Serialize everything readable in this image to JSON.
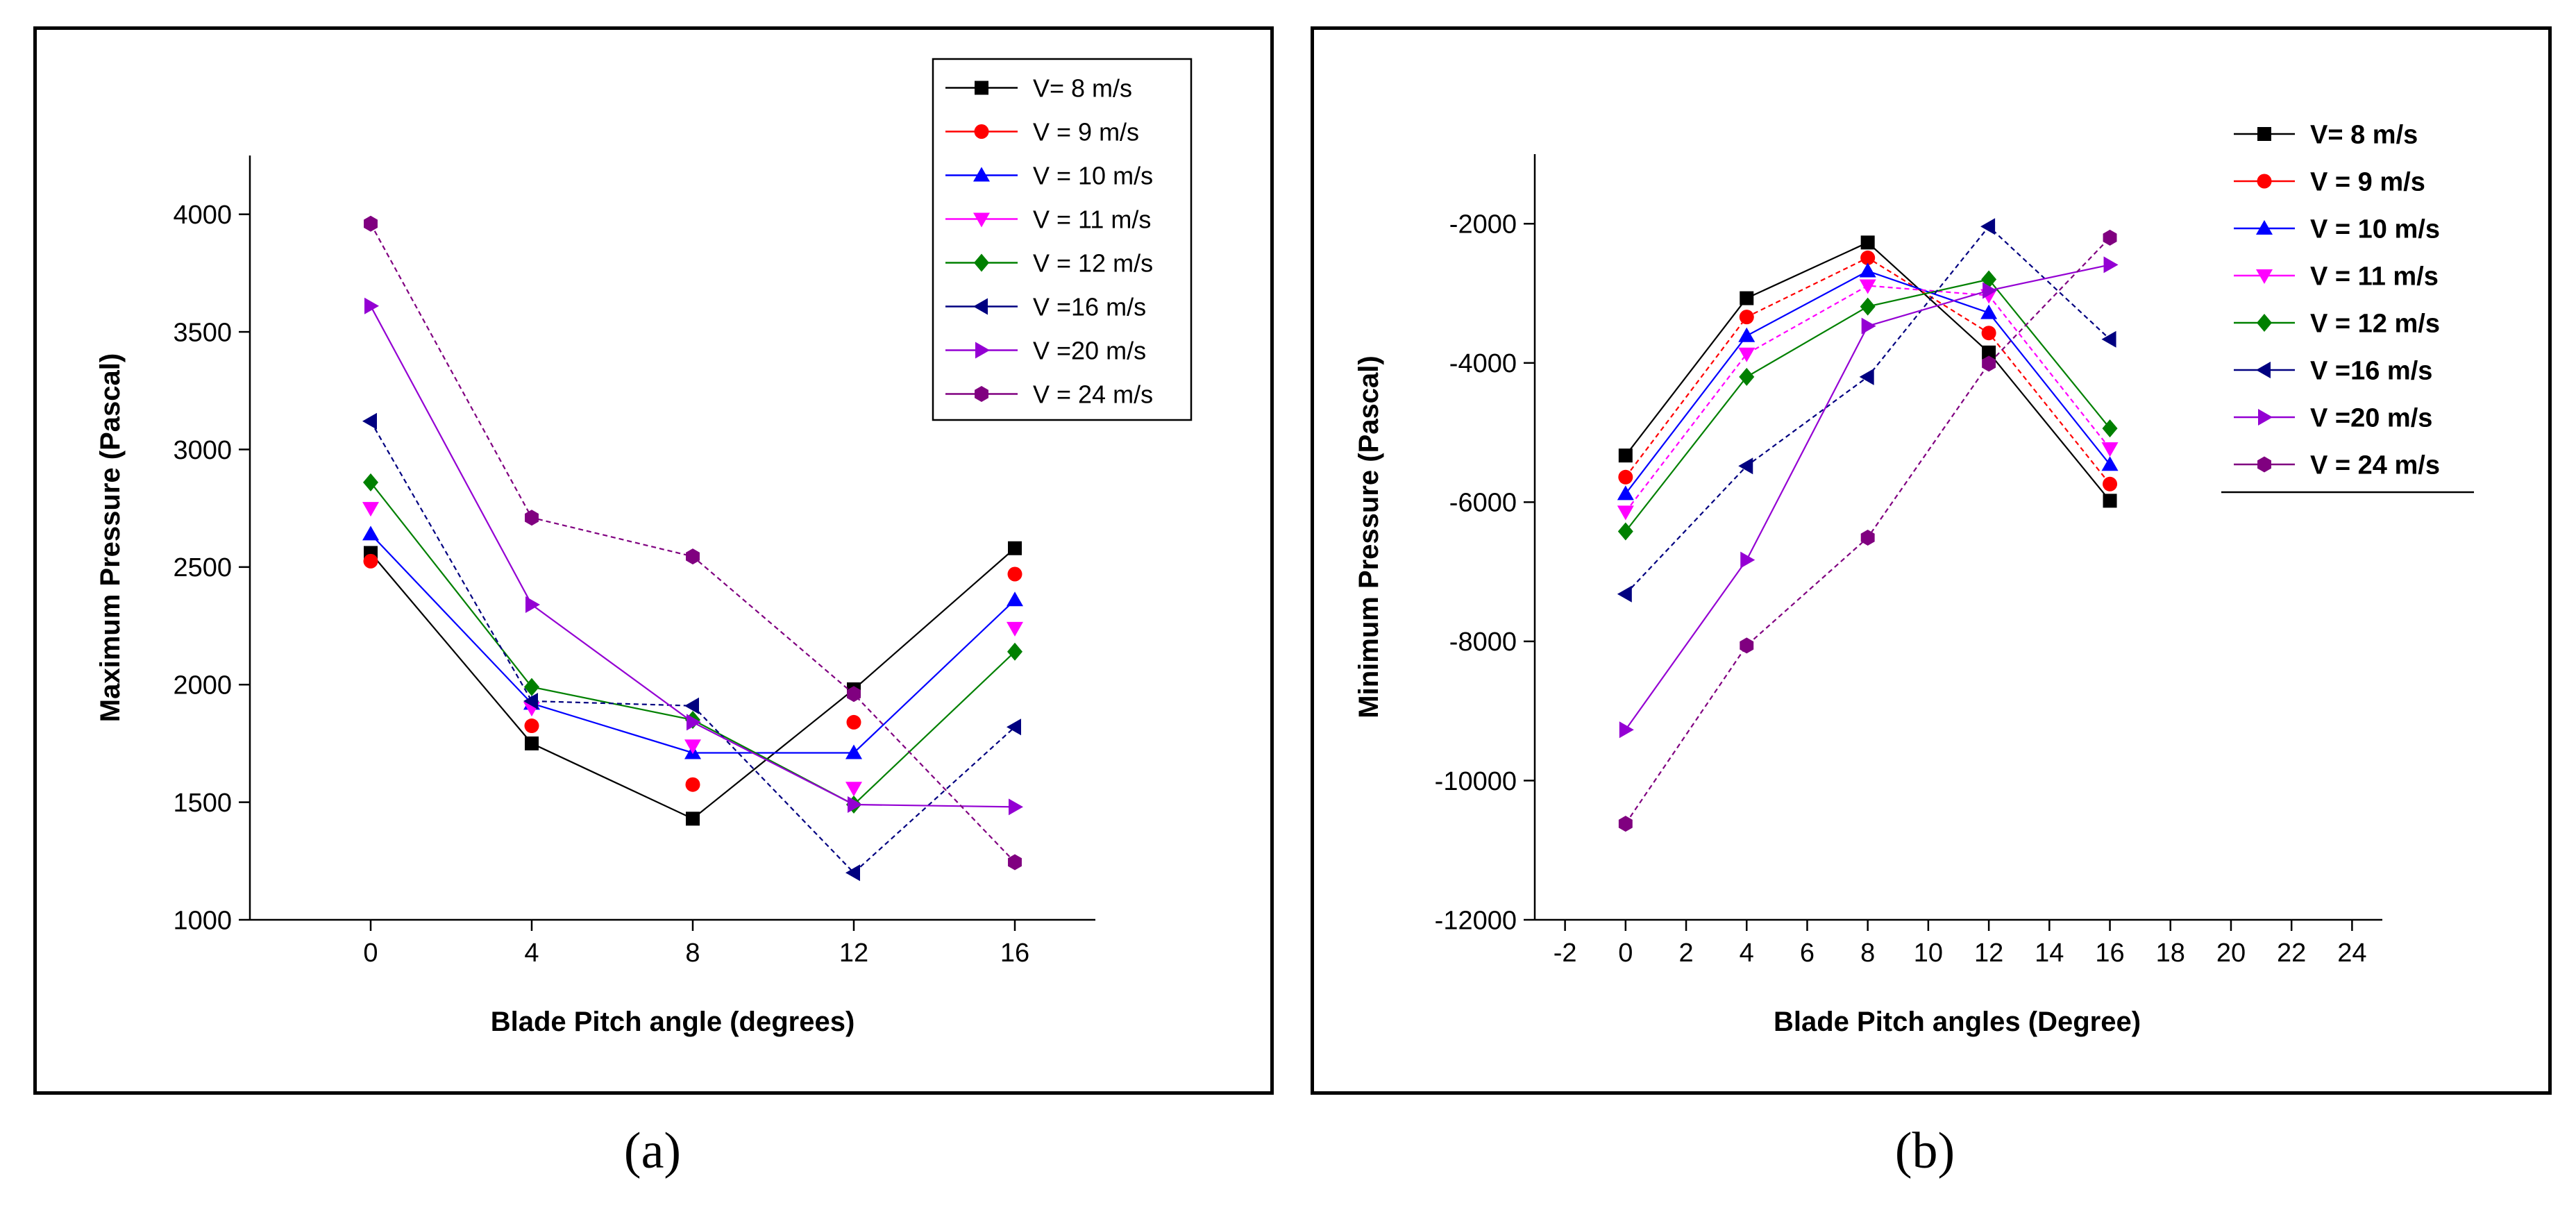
{
  "captions": {
    "a": "(a)",
    "b": "(b)"
  },
  "chart_data": [
    {
      "type": "line",
      "panel": "a",
      "xlabel": "Blade Pitch angle (degrees)",
      "ylabel": "Maximum Pressure (Pascal)",
      "xlim": [
        -3,
        18
      ],
      "ylim": [
        1000,
        4250
      ],
      "xticks": [
        0,
        4,
        8,
        12,
        16
      ],
      "yticks": [
        1000,
        1500,
        2000,
        2500,
        3000,
        3500,
        4000
      ],
      "legend_position": "top-right",
      "x": [
        0,
        4,
        8,
        12,
        16
      ],
      "series": [
        {
          "name": "V= 8 m/s",
          "marker": "square",
          "color": "#000000",
          "values": [
            2560,
            1750,
            1430,
            1980,
            2580
          ],
          "line": true
        },
        {
          "name": "V = 9 m/s",
          "marker": "circle",
          "color": "#ff0000",
          "values": [
            2525,
            1825,
            1575,
            1840,
            2470
          ],
          "line": false
        },
        {
          "name": "V = 10 m/s",
          "marker": "triangle-up",
          "color": "#0000ff",
          "values": [
            2640,
            1920,
            1710,
            1710,
            2360
          ],
          "line": true
        },
        {
          "name": "V = 11 m/s",
          "marker": "triangle-down",
          "color": "#ff00ff",
          "values": [
            2750,
            1900,
            1740,
            1560,
            2240
          ],
          "line": false
        },
        {
          "name": "V = 12 m/s",
          "marker": "diamond",
          "color": "#008000",
          "values": [
            2860,
            1990,
            1850,
            1490,
            2140
          ],
          "line": true
        },
        {
          "name": "V =16 m/s",
          "marker": "triangle-left",
          "color": "#000080",
          "values": [
            3120,
            1930,
            1910,
            1200,
            1820
          ],
          "line": true
        },
        {
          "name": "V =20 m/s",
          "marker": "triangle-right",
          "color": "#9400d3",
          "values": [
            3610,
            2340,
            1840,
            1490,
            1480
          ],
          "line": true
        },
        {
          "name": "V = 24 m/s",
          "marker": "hexagon",
          "color": "#800080",
          "values": [
            3960,
            2710,
            2545,
            1960,
            1245
          ],
          "line": true
        }
      ]
    },
    {
      "type": "line",
      "panel": "b",
      "xlabel": "Blade Pitch angles (Degree)",
      "ylabel": "Minimum Pressure (Pascal)",
      "xlim": [
        -3,
        25
      ],
      "ylim": [
        -12000,
        -1000
      ],
      "xticks": [
        -2,
        0,
        2,
        4,
        6,
        8,
        10,
        12,
        14,
        16,
        18,
        20,
        22,
        24
      ],
      "yticks": [
        -12000,
        -10000,
        -8000,
        -6000,
        -4000,
        -2000
      ],
      "legend_position": "top-right",
      "x": [
        0,
        4,
        8,
        12,
        16
      ],
      "series": [
        {
          "name": "V= 8 m/s",
          "marker": "square",
          "color": "#000000",
          "values": [
            -5330,
            -3070,
            -2270,
            -3850,
            -5980
          ],
          "line": true
        },
        {
          "name": "V = 9 m/s",
          "marker": "circle",
          "color": "#ff0000",
          "values": [
            -5640,
            -3340,
            -2490,
            -3570,
            -5740
          ],
          "line": true
        },
        {
          "name": "V = 10 m/s",
          "marker": "triangle-up",
          "color": "#0000ff",
          "values": [
            -5880,
            -3610,
            -2680,
            -3280,
            -5460
          ],
          "line": true
        },
        {
          "name": "V = 11 m/s",
          "marker": "triangle-down",
          "color": "#ff00ff",
          "values": [
            -6140,
            -3870,
            -2890,
            -3030,
            -5230
          ],
          "line": true
        },
        {
          "name": "V = 12 m/s",
          "marker": "diamond",
          "color": "#008000",
          "values": [
            -6420,
            -4200,
            -3190,
            -2800,
            -4940
          ],
          "line": true
        },
        {
          "name": "V =16 m/s",
          "marker": "triangle-left",
          "color": "#000080",
          "values": [
            -7320,
            -5480,
            -4200,
            -2040,
            -3660
          ],
          "line": true
        },
        {
          "name": "V =20 m/s",
          "marker": "triangle-right",
          "color": "#9400d3",
          "values": [
            -9270,
            -6830,
            -3470,
            -2960,
            -2590
          ],
          "line": true
        },
        {
          "name": "V = 24 m/s",
          "marker": "hexagon",
          "color": "#800080",
          "values": [
            -10620,
            -8060,
            -6510,
            -4010,
            -2200
          ],
          "line": true
        }
      ]
    }
  ]
}
